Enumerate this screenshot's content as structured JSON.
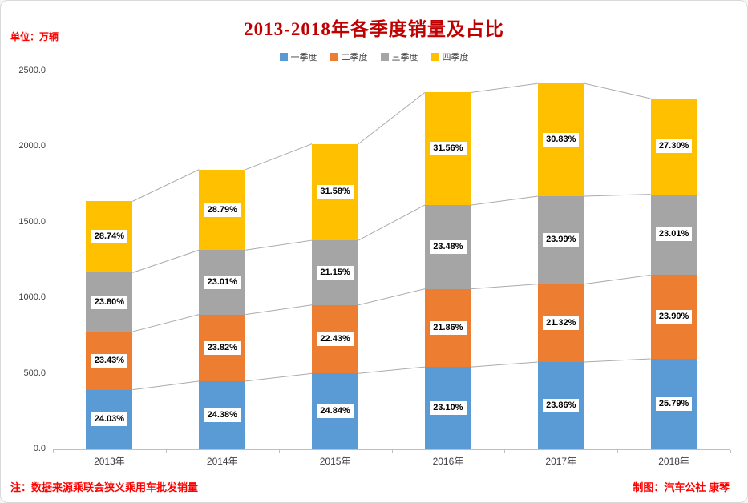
{
  "header": {
    "unit_label": "单位：万辆",
    "title": "2013-2018年各季度销量及占比"
  },
  "legend": [
    {
      "label": "一季度",
      "color": "#5B9BD5"
    },
    {
      "label": "二季度",
      "color": "#ED7D31"
    },
    {
      "label": "三季度",
      "color": "#A5A5A5"
    },
    {
      "label": "四季度",
      "color": "#FFC000"
    }
  ],
  "chart_data": {
    "type": "bar",
    "stacked": true,
    "title": "2013-2018年各季度销量及占比",
    "unit": "万辆",
    "categories": [
      "2013年",
      "2014年",
      "2015年",
      "2016年",
      "2017年",
      "2018年"
    ],
    "totals": [
      1640,
      1850,
      2020,
      2360,
      2420,
      2320
    ],
    "series": [
      {
        "name": "一季度",
        "color": "#5B9BD5",
        "percents": [
          24.03,
          24.38,
          24.84,
          23.1,
          23.86,
          25.79
        ],
        "values": [
          394,
          451,
          502,
          545,
          577,
          598
        ]
      },
      {
        "name": "二季度",
        "color": "#ED7D31",
        "percents": [
          23.43,
          23.82,
          22.43,
          21.86,
          21.32,
          23.9
        ],
        "values": [
          384,
          441,
          453,
          516,
          516,
          554
        ]
      },
      {
        "name": "三季度",
        "color": "#A5A5A5",
        "percents": [
          23.8,
          23.01,
          21.15,
          23.48,
          23.99,
          23.01
        ],
        "values": [
          390,
          426,
          427,
          554,
          581,
          534
        ]
      },
      {
        "name": "四季度",
        "color": "#FFC000",
        "percents": [
          28.74,
          28.79,
          31.58,
          31.56,
          30.83,
          27.3
        ],
        "values": [
          471,
          533,
          638,
          745,
          746,
          633
        ]
      }
    ],
    "y_ticks": [
      0,
      500,
      1000,
      1500,
      2000,
      2500
    ],
    "y_tick_labels": [
      "0.0",
      "500.0",
      "1000.0",
      "1500.0",
      "2000.0",
      "2500.0"
    ],
    "ylim": [
      0,
      2500
    ],
    "grid": false,
    "legend_position": "top",
    "connector_lines": true,
    "connector_color": "#ABABAB"
  },
  "footer": {
    "note": "注：数据来源乘联会狭义乘用车批发销量",
    "credit": "制图：汽车公社  康琴"
  }
}
